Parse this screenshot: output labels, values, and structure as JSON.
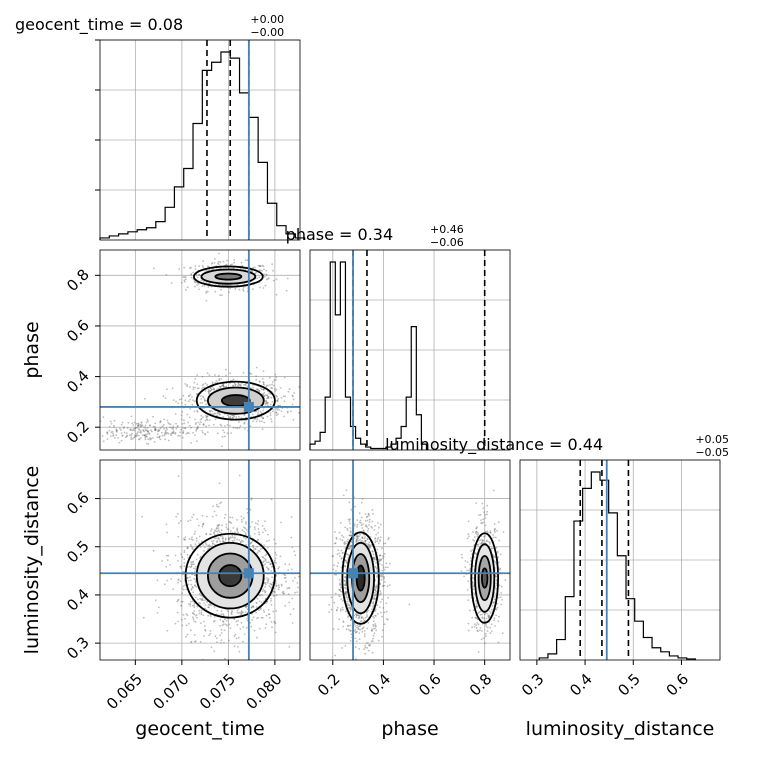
{
  "chart_data": {
    "type": "corner",
    "parameters": [
      "geocent_time",
      "phase",
      "luminosity_distance"
    ],
    "titles": [
      {
        "param": "geocent_time",
        "name": "geocent_time",
        "value": "0.08",
        "plus": "+0.00",
        "minus": "−0.00"
      },
      {
        "param": "phase",
        "name": "phase",
        "value": "0.34",
        "plus": "+0.46",
        "minus": "−0.06"
      },
      {
        "param": "luminosity_distance",
        "name": "luminosity_distance",
        "value": "0.44",
        "plus": "+0.05",
        "minus": "−0.05"
      }
    ],
    "ranges": {
      "geocent_time": [
        0.0612,
        0.0827
      ],
      "phase": [
        0.11,
        0.9
      ],
      "luminosity_distance": [
        0.265,
        0.68
      ]
    },
    "ticks": {
      "geocent_time": [
        "0.065",
        "0.070",
        "0.075",
        "0.080"
      ],
      "phase": [
        "0.2",
        "0.4",
        "0.6",
        "0.8"
      ],
      "luminosity_distance": [
        "0.3",
        "0.4",
        "0.5",
        "0.6"
      ]
    },
    "truths": {
      "geocent_time": 0.0772,
      "phase": 0.28,
      "luminosity_distance": 0.445
    },
    "quantiles": {
      "geocent_time": [
        0.0727,
        0.0752,
        0.0772
      ],
      "phase": [
        0.28,
        0.335,
        0.8
      ],
      "luminosity_distance": [
        0.39,
        0.435,
        0.49
      ]
    },
    "histograms": {
      "geocent_time": {
        "edges_start": 0.0612,
        "bin_width": 0.001,
        "counts": [
          1,
          2,
          3,
          4,
          5,
          6,
          9,
          16,
          26,
          35,
          57,
          83,
          87,
          92,
          89,
          72,
          60,
          38,
          18,
          7,
          3,
          1
        ]
      },
      "phase": {
        "edges_start": 0.11,
        "bin_width": 0.02,
        "counts": [
          2,
          3,
          6,
          18,
          64,
          46,
          64,
          18,
          8,
          4,
          2,
          1,
          0.5,
          0.5,
          0.5,
          1,
          2,
          4,
          8,
          18,
          42,
          12,
          2
        ]
      },
      "luminosity_distance": {
        "edges_start": 0.305,
        "bin_width": 0.018,
        "counts": [
          1,
          3,
          10,
          31,
          68,
          84,
          92,
          88,
          72,
          51,
          30,
          19,
          11,
          6,
          4,
          2,
          1,
          0.5
        ]
      }
    },
    "grid": true,
    "color_truth": "#4682b4",
    "color_contour": "#000000"
  }
}
